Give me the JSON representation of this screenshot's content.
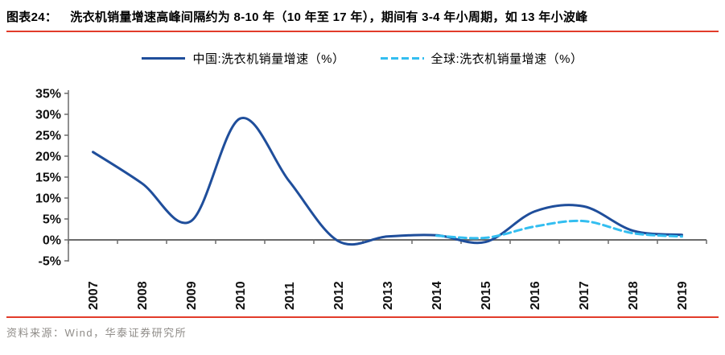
{
  "header": {
    "figure_label": "图表24：",
    "title": "洗衣机销量增速高峰间隔约为 8-10 年（10 年至 17 年），期间有 3-4 年小周期，如 13 年小波峰"
  },
  "footer": {
    "source": "资料来源：Wind，华泰证券研究所"
  },
  "colors": {
    "accent_red": "#e23c2a",
    "axis": "#6b6b6b",
    "tick_text": "#111111",
    "footer_text": "#8f8c88",
    "china_line": "#1f4e9b",
    "global_line": "#33bef0"
  },
  "chart_data": {
    "type": "line",
    "title": "洗衣机销量增速高峰间隔约为 8-10 年（10 年至 17 年），期间有 3-4 年小周期，如 13 年小波峰",
    "categories": [
      "2007",
      "2008",
      "2009",
      "2010",
      "2011",
      "2012",
      "2013",
      "2014",
      "2015",
      "2016",
      "2017",
      "2018",
      "2019"
    ],
    "series": [
      {
        "name": "中国:洗衣机销量增速（%）",
        "style": "solid",
        "color": "#1f4e9b",
        "start_index": 0,
        "values": [
          21,
          13.5,
          4.5,
          29,
          14,
          -0.3,
          0.8,
          1.1,
          -0.5,
          6.8,
          8,
          2.2,
          1.2
        ]
      },
      {
        "name": "全球:洗衣机销量增速（%）",
        "style": "dashed",
        "color": "#33bef0",
        "start_index": 7,
        "values": [
          1,
          0.5,
          3.2,
          4.5,
          1.6,
          0.8
        ]
      }
    ],
    "xlabel": "",
    "ylabel": "",
    "ylim": [
      -5,
      35
    ],
    "ytick_step": 5,
    "ytick_values": [
      35,
      30,
      25,
      20,
      15,
      10,
      5,
      0,
      -5
    ],
    "ytick_labels": [
      "35%",
      "30%",
      "25%",
      "20%",
      "15%",
      "10%",
      "5%",
      "0%",
      "-5%"
    ],
    "grid": false,
    "legend_position": "top",
    "smooth": true
  }
}
